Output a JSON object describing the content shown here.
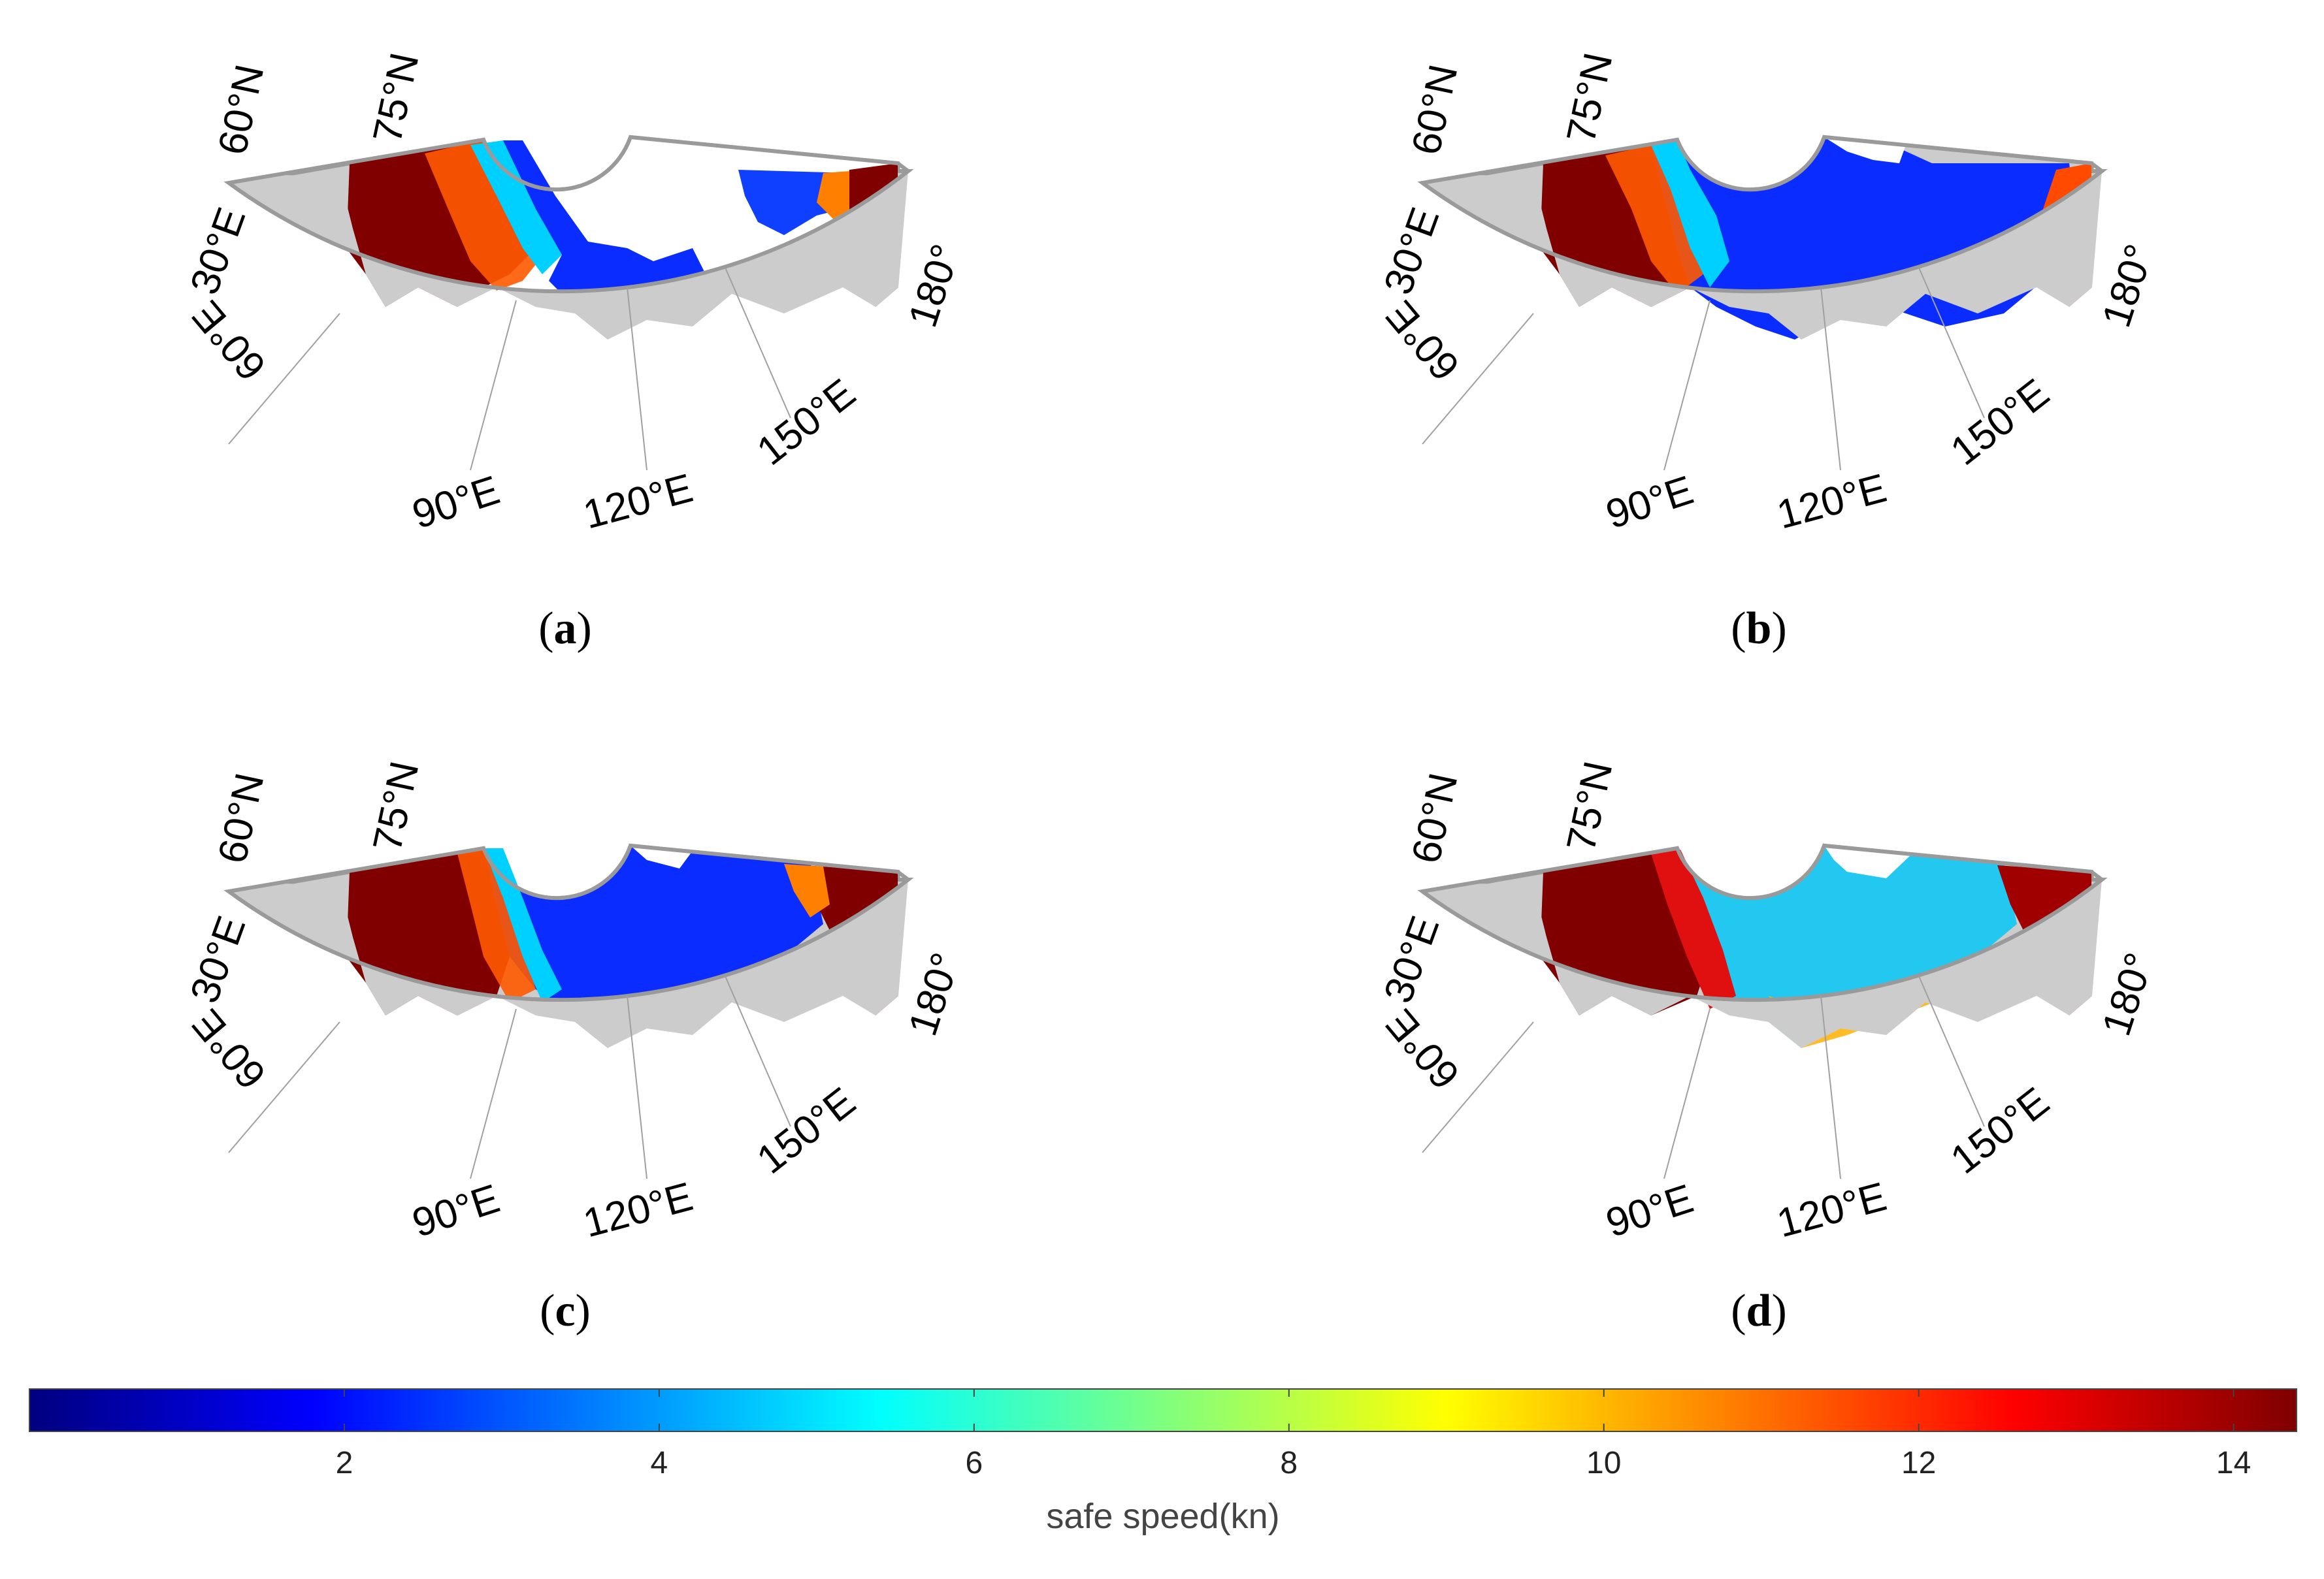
{
  "figure": {
    "panels": [
      {
        "id": "a",
        "label_open": "(",
        "label_letter": "a",
        "label_close": ")",
        "labels": {
          "lat60": "60°N",
          "lat75": "75°N",
          "lon30": "30°E",
          "lon60": "60°E",
          "lon90": "90°E",
          "lon120": "120°E",
          "lon150": "150°E",
          "lon180": "180°"
        }
      },
      {
        "id": "b",
        "label_open": "(",
        "label_letter": "b",
        "label_close": ")",
        "labels": {
          "lat60": "60°N",
          "lat75": "75°N",
          "lon30": "30°E",
          "lon60": "60°E",
          "lon90": "90°E",
          "lon120": "120°E",
          "lon150": "150°E",
          "lon180": "180°"
        }
      },
      {
        "id": "c",
        "label_open": "(",
        "label_letter": "c",
        "label_close": ")",
        "labels": {
          "lat60": "60°N",
          "lat75": "75°N",
          "lon30": "30°E",
          "lon60": "60°E",
          "lon90": "90°E",
          "lon120": "120°E",
          "lon150": "150°E",
          "lon180": "180°"
        }
      },
      {
        "id": "d",
        "label_open": "(",
        "label_letter": "d",
        "label_close": ")",
        "labels": {
          "lat60": "60°N",
          "lat75": "75°N",
          "lon30": "30°E",
          "lon60": "60°E",
          "lon90": "90°E",
          "lon120": "120°E",
          "lon150": "150°E",
          "lon180": "180°"
        }
      }
    ],
    "colorbar": {
      "title": "safe speed(kn)",
      "min": 0,
      "max": 14.4,
      "ticks": [
        "2",
        "4",
        "6",
        "8",
        "10",
        "12",
        "14"
      ],
      "tick_values": [
        2,
        4,
        6,
        8,
        10,
        12,
        14
      ],
      "colormap": "jet",
      "colors": [
        "#00007f",
        "#0000ff",
        "#007fff",
        "#00ffff",
        "#7fff7f",
        "#ffff00",
        "#ff7f00",
        "#ff0000",
        "#7f0000"
      ]
    },
    "colors": {
      "land": "#cccccc",
      "ice_free_high": "#800000",
      "frame": "#9a9a9a",
      "grid": "#a0a0a0"
    }
  }
}
